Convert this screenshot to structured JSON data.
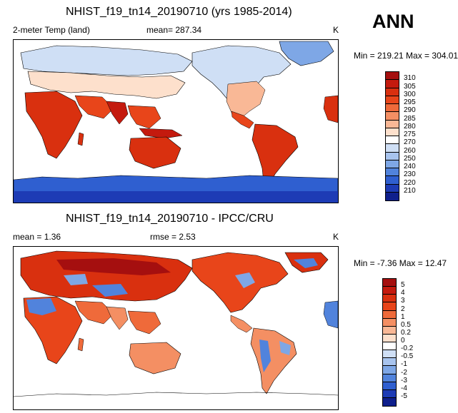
{
  "season": "ANN",
  "panel_top": {
    "title": "NHIST_f19_tn14_20190710 (yrs 1985-2014)",
    "variable": "2-meter Temp (land)",
    "mean_text": "mean= 287.34",
    "units": "K",
    "minmax_text": "Min = 219.21 Max = 304.01",
    "colorbar": {
      "labels": [
        "310",
        "305",
        "300",
        "295",
        "290",
        "285",
        "280",
        "275",
        "270",
        "260",
        "250",
        "240",
        "230",
        "220",
        "210"
      ],
      "colors": [
        "#a50f0f",
        "#c41a0e",
        "#d9300f",
        "#e8451a",
        "#ef6a3a",
        "#f48f63",
        "#f9b896",
        "#fde0cc",
        "#ffffff",
        "#cfdff5",
        "#a8c4ee",
        "#7ea7e6",
        "#5183dc",
        "#2f5fd0",
        "#1d3bb5",
        "#0f1f8c"
      ]
    }
  },
  "panel_bottom": {
    "title": "NHIST_f19_tn14_20190710 - IPCC/CRU",
    "mean_text": "mean =   1.36",
    "rmse_text": "rmse =   2.53",
    "units": "K",
    "minmax_text": "Min =  -7.36 Max =  12.47",
    "colorbar": {
      "labels": [
        "5",
        "4",
        "3",
        "2",
        "1",
        "0.5",
        "0.2",
        "0",
        "-0.2",
        "-0.5",
        "-1",
        "-2",
        "-3",
        "-4",
        "-5"
      ],
      "colors": [
        "#a50f0f",
        "#c41a0e",
        "#d9300f",
        "#e8451a",
        "#ef6a3a",
        "#f48f63",
        "#f9b896",
        "#fde0cc",
        "#ffffff",
        "#cfdff5",
        "#a8c4ee",
        "#7ea7e6",
        "#5183dc",
        "#2f5fd0",
        "#1d3bb5",
        "#0f1f8c"
      ]
    }
  }
}
